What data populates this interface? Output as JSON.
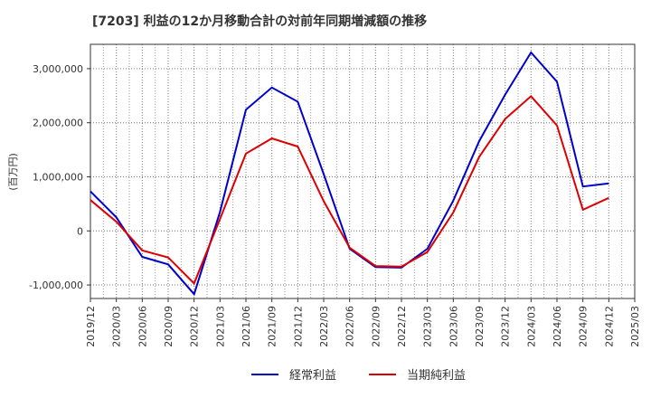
{
  "chart_data": {
    "type": "line",
    "title": "[7203]  利益の12か月移動合計の対前年同期増減額の推移",
    "ylabel": "(百万円)",
    "xlabel": "",
    "ylim": [
      -1250000,
      3450000
    ],
    "y_ticks": [
      -1000000,
      0,
      1000000,
      2000000,
      3000000
    ],
    "y_tick_labels": [
      "-1,000,000",
      "0",
      "1,000,000",
      "2,000,000",
      "3,000,000"
    ],
    "x_labels": [
      "2019/12",
      "2020/03",
      "2020/06",
      "2020/09",
      "2020/12",
      "2021/03",
      "2021/06",
      "2021/09",
      "2021/12",
      "2022/03",
      "2022/06",
      "2022/09",
      "2022/12",
      "2023/03",
      "2023/06",
      "2023/09",
      "2023/12",
      "2024/03",
      "2024/06",
      "2024/09",
      "2024/12",
      "2025/03"
    ],
    "grid": true,
    "legend_position": "bottom",
    "series": [
      {
        "name": "経常利益",
        "color": "#0000cc",
        "values": [
          730000,
          250000,
          -480000,
          -620000,
          -1170000,
          350000,
          2240000,
          2650000,
          2390000,
          1050000,
          -330000,
          -670000,
          -680000,
          -330000,
          560000,
          1660000,
          2520000,
          3300000,
          2760000,
          820000,
          880000,
          null
        ]
      },
      {
        "name": "当期純利益",
        "color": "#dd0000",
        "values": [
          570000,
          170000,
          -360000,
          -490000,
          -970000,
          220000,
          1430000,
          1710000,
          1560000,
          550000,
          -310000,
          -650000,
          -660000,
          -390000,
          340000,
          1370000,
          2070000,
          2490000,
          1950000,
          390000,
          610000,
          null
        ]
      }
    ]
  }
}
